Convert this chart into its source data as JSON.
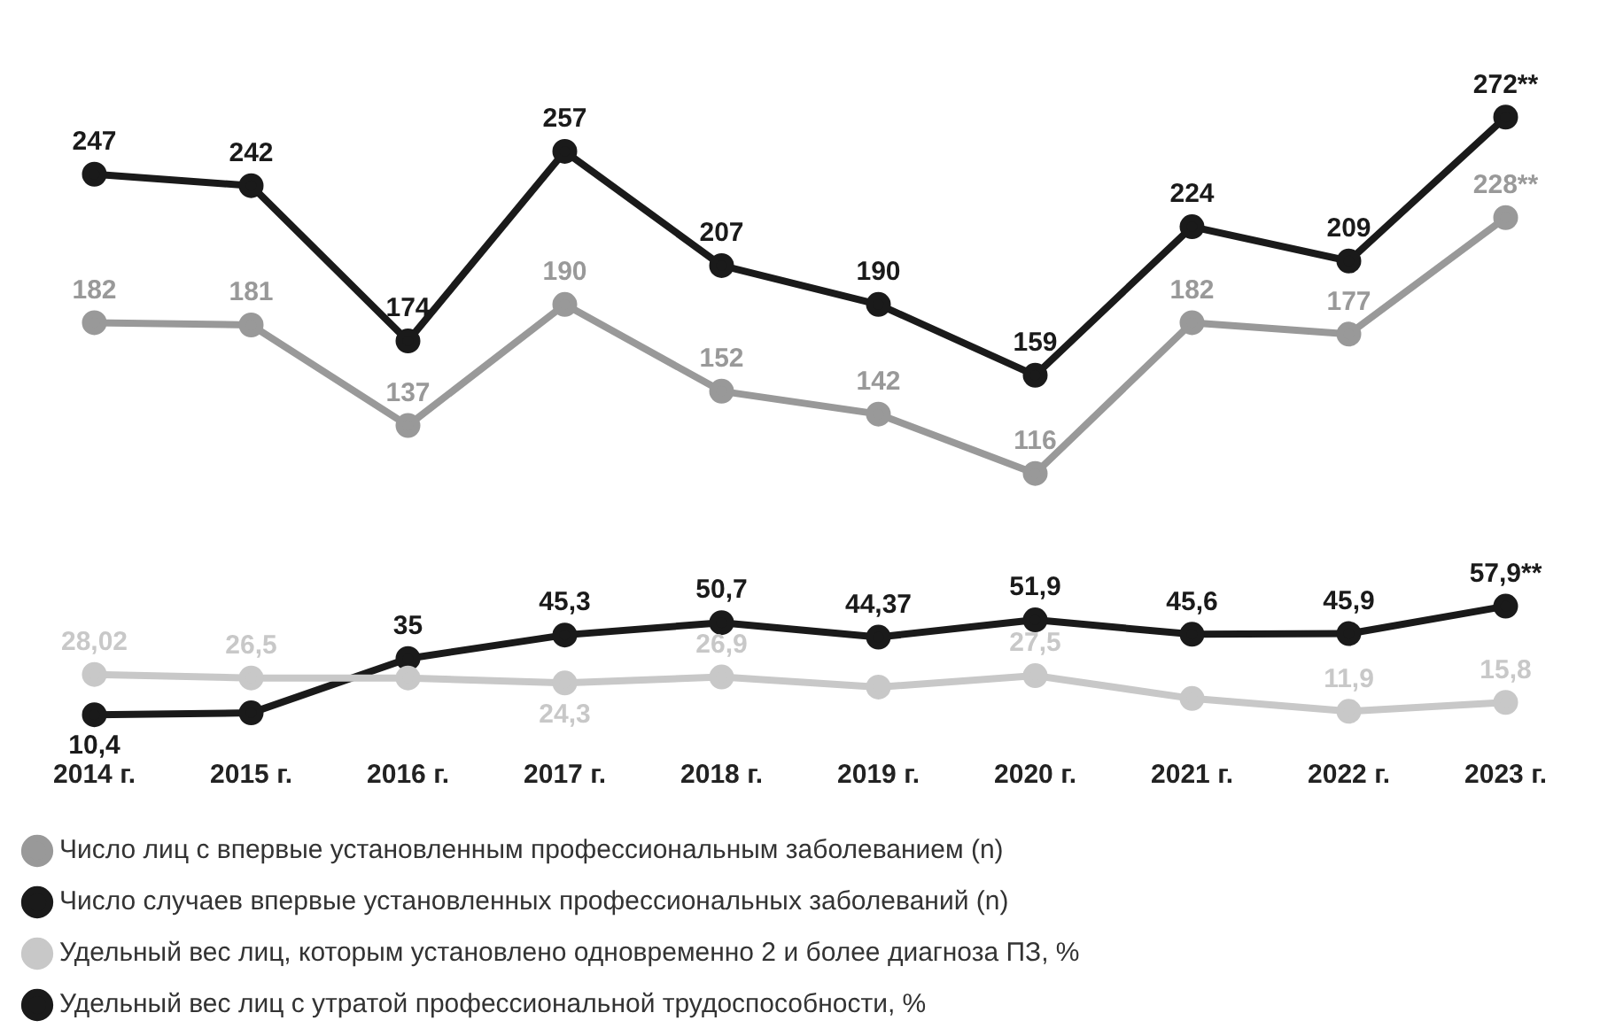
{
  "chart_data": {
    "type": "line",
    "categories": [
      "2014 г.",
      "2015 г.",
      "2016 г.",
      "2017 г.",
      "2018 г.",
      "2019 г.",
      "2020 г.",
      "2021 г.",
      "2022 г.",
      "2023 г."
    ],
    "series": [
      {
        "name": "Число лиц с впервые установленным профессиональным заболеванием (n)",
        "color": "#999999",
        "values": [
          182,
          181,
          137,
          190,
          152,
          142,
          116,
          182,
          177,
          228
        ],
        "value_labels": [
          "182",
          "181",
          "137",
          "190",
          "152",
          "142",
          "116",
          "182",
          "177",
          "228**"
        ]
      },
      {
        "name": "Число случаев впервые установленных профессиональных заболеваний (n)",
        "color": "#1a1a1a",
        "values": [
          247,
          242,
          174,
          257,
          207,
          190,
          159,
          224,
          209,
          272
        ],
        "value_labels": [
          "247",
          "242",
          "174",
          "257",
          "207",
          "190",
          "159",
          "224",
          "209",
          "272**"
        ]
      },
      {
        "name": "Удельный вес лиц, которым установлено одновременно 2 и более диагноза ПЗ, %",
        "color": "#c8c8c8",
        "values": [
          28.02,
          26.5,
          26.5,
          24.3,
          26.9,
          22.5,
          27.5,
          17.5,
          11.9,
          15.8
        ],
        "value_labels": [
          "28,02",
          "26,5",
          null,
          "24,3",
          "26,9",
          null,
          "27,5",
          null,
          "11,9",
          "15,8"
        ]
      },
      {
        "name": "Удельный вес лиц с утратой профессиональной трудоспособности, %",
        "color": "#1a1a1a",
        "values": [
          10.4,
          11.2,
          35,
          45.3,
          50.7,
          44.37,
          51.9,
          45.6,
          45.9,
          57.9
        ],
        "value_labels": [
          "10,4",
          null,
          "35",
          "45,3",
          "50,7",
          "44,37",
          "51,9",
          "45,6",
          "45,9",
          "57,9**"
        ]
      }
    ],
    "tick_labels": "x",
    "grid": false,
    "legend": "bottom",
    "marker": "circle"
  }
}
